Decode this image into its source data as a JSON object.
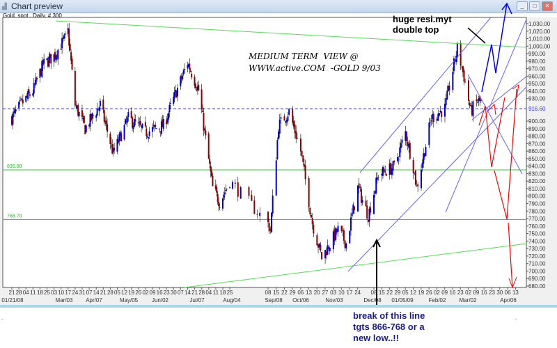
{
  "window": {
    "title": "Chart preview",
    "icon": "chart-icon",
    "controls": [
      "minimize",
      "maximize",
      "close"
    ]
  },
  "chart_header": "Gold, spot , Daily, # 300",
  "chart_data": {
    "type": "candlestick",
    "instrument": "Gold, spot",
    "interval": "Daily",
    "bars": 300,
    "ylim": [
      675,
      1040
    ],
    "y_ticks": [
      1030,
      1020,
      1010,
      1000,
      990,
      980,
      970,
      960,
      950,
      940,
      930,
      900,
      890,
      880,
      870,
      860,
      850,
      840,
      830,
      820,
      810,
      800,
      790,
      780,
      770,
      760,
      750,
      740,
      730,
      720,
      710,
      700,
      690,
      680
    ],
    "y_tick_labels": [
      "1,030.00",
      "1,020.00",
      "1,010.00",
      "1,000.00",
      "990.00",
      "980.00",
      "970.00",
      "960.00",
      "950.00",
      "940.00",
      "930.00",
      "900.00",
      "890.00",
      "880.00",
      "870.00",
      "860.00",
      "850.00",
      "840.00",
      "830.00",
      "820.00",
      "810.00",
      "800.00",
      "790.00",
      "780.00",
      "770.00",
      "760.00",
      "750.00",
      "740.00",
      "730.00",
      "720.00",
      "710.00",
      "700.00",
      "690.00",
      "680.00"
    ],
    "x_day_labels": [
      "21",
      "28",
      "04",
      "11",
      "18",
      "25",
      "03",
      "10",
      "17",
      "24",
      "31",
      "07",
      "14",
      "21",
      "28",
      "05",
      "12",
      "19",
      "26",
      "02",
      "09",
      "16",
      "23",
      "30",
      "07",
      "14",
      "21",
      "28",
      "04",
      "11",
      "18",
      "25",
      "08",
      "15",
      "22",
      "29",
      "06",
      "13",
      "20",
      "27",
      "03",
      "10",
      "17",
      "24",
      "08",
      "15",
      "22",
      "29",
      "05",
      "12",
      "19",
      "26",
      "02",
      "09",
      "16",
      "23",
      "02",
      "09",
      "16",
      "23",
      "30",
      "06",
      "13"
    ],
    "x_month_labels": [
      "01/21/08",
      "Mar/03",
      "Apr/07",
      "May/05",
      "Jun/02",
      "Jul/07",
      "Aug/04",
      "Sep/08",
      "Oct/06",
      "Nov/03",
      "Dec/08",
      "01/05/09",
      "Feb/02",
      "Mar/02",
      "Apr/06"
    ],
    "approx_close_path": [
      [
        "2008-01-21",
        904
      ],
      [
        "2008-01-30",
        922
      ],
      [
        "2008-02-11",
        940
      ],
      [
        "2008-02-21",
        975
      ],
      [
        "2008-03-03",
        987
      ],
      [
        "2008-03-14",
        1010
      ],
      [
        "2008-03-17",
        1020
      ],
      [
        "2008-03-24",
        922
      ],
      [
        "2008-04-03",
        890
      ],
      [
        "2008-04-18",
        922
      ],
      [
        "2008-05-01",
        857
      ],
      [
        "2008-05-16",
        904
      ],
      [
        "2008-06-02",
        885
      ],
      [
        "2008-06-20",
        894
      ],
      [
        "2008-07-14",
        978
      ],
      [
        "2008-07-25",
        941
      ],
      [
        "2008-08-08",
        811
      ],
      [
        "2008-08-15",
        792
      ],
      [
        "2008-08-25",
        820
      ],
      [
        "2008-09-10",
        755
      ],
      [
        "2008-09-17",
        894
      ],
      [
        "2008-09-26",
        913
      ],
      [
        "2008-10-06",
        860
      ],
      [
        "2008-10-16",
        764
      ],
      [
        "2008-10-24",
        718
      ],
      [
        "2008-11-07",
        755
      ],
      [
        "2008-11-14",
        737
      ],
      [
        "2008-11-24",
        811
      ],
      [
        "2008-12-03",
        774
      ],
      [
        "2008-12-12",
        829
      ],
      [
        "2008-12-26",
        839
      ],
      [
        "2009-01-05",
        885
      ],
      [
        "2009-01-12",
        839
      ],
      [
        "2009-01-15",
        811
      ],
      [
        "2009-01-28",
        904
      ],
      [
        "2009-02-09",
        917
      ],
      [
        "2009-02-20",
        997
      ],
      [
        "2009-02-26",
        959
      ],
      [
        "2009-03-04",
        913
      ],
      [
        "2009-03-10",
        927
      ],
      [
        "2009-03-13",
        925
      ]
    ],
    "horizontal_lines": [
      {
        "value": 916.6,
        "label": "916.60",
        "color": "#3333ff",
        "style": "dashed"
      },
      {
        "value": 835.0,
        "label": "835.00",
        "color": "#33cc33"
      },
      {
        "value": 768.7,
        "label": "768.70",
        "color": "#33cc33"
      }
    ],
    "colors": {
      "up": "#0000dd",
      "down": "#8b0000",
      "wick": "#000000",
      "trendline": "#55dd55",
      "channel": "#6666ee",
      "bull_arrow": "#0000ff",
      "bear_arrow": "#ff0000"
    }
  },
  "annotations": {
    "title_line1": "MEDIUM TERM  VIEW @",
    "title_line2": "WWW.active.COM  -GOLD 9/03",
    "resistance_note_line1": "huge resi.myt",
    "resistance_note_line2": "double top",
    "break_note_line1": "break of this line",
    "break_note_line2": "tgts 866-768 or a",
    "break_note_line3": "new low..!!"
  }
}
